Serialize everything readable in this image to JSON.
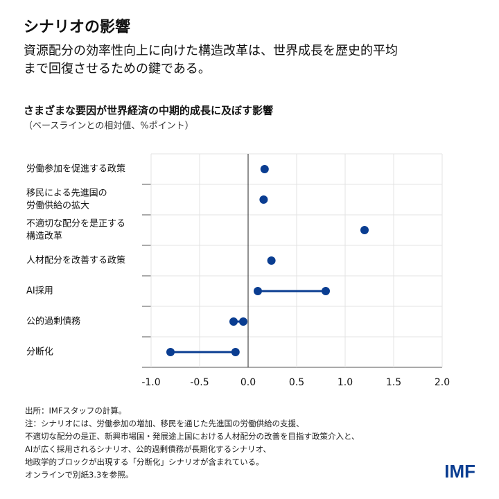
{
  "chart_data": {
    "type": "dot-range",
    "header_title": "シナリオの影響",
    "header_subtitle": [
      "資源配分の効率性向上に向けた構造改革は、世界成長を歴史的平均",
      "まで回復させるための鍵である。"
    ],
    "title": "さまざまな要因が世界経済の中期的成長に及ぼす影響",
    "subtitle": "（ベースラインとの相対値、%ポイント）",
    "categories": [
      [
        "労働参加を促進する政策"
      ],
      [
        "移民による先進国の",
        "労働供給の拡大"
      ],
      [
        "不適切な配分を是正する",
        "構造改革"
      ],
      [
        "人材配分を改善する政策"
      ],
      [
        "AI採用"
      ],
      [
        "公的過剰債務"
      ],
      [
        "分断化"
      ]
    ],
    "values": [
      [
        0.17
      ],
      [
        0.16
      ],
      [
        1.2
      ],
      [
        0.24
      ],
      [
        0.1,
        0.8
      ],
      [
        -0.15,
        -0.05
      ],
      [
        -0.8,
        -0.13
      ]
    ],
    "color": "#0a3d91",
    "xlim": [
      -1,
      2
    ],
    "xticks": [
      {
        "value": -1,
        "label": "-1.0"
      },
      -0.5,
      {
        "value": 0,
        "label": "0.0"
      },
      0.5,
      {
        "value": 1,
        "label": "1.0"
      },
      1.5,
      {
        "value": 2,
        "label": "2.0"
      }
    ],
    "grid": true,
    "notes": [
      "出所：IMFスタッフの計算。",
      "注：シナリオには、労働参加の増加、移民を通じた先進国の労働供給の支援、",
      "不適切な配分の是正、新興市場国・発展途上国における人材配分の改善を目指す政策介入と、",
      "AIが広く採用されるシナリオ、公的過剰債務が長期化するシナリオ、",
      "地政学的ブロックが出現する「分断化」シナリオが含まれている。",
      "オンラインで別紙3.3を参照。"
    ],
    "logo": "IMF"
  }
}
